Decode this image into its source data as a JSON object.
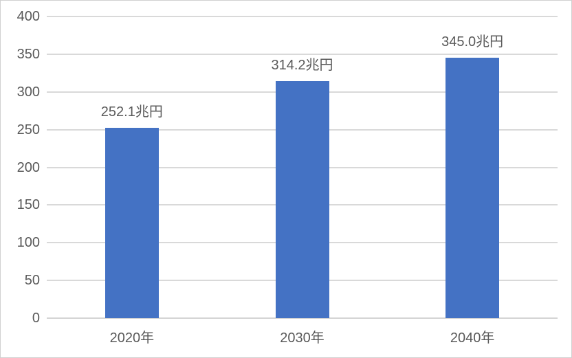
{
  "chart_data": {
    "type": "bar",
    "title": "",
    "categories": [
      "2020年",
      "2030年",
      "2040年"
    ],
    "values": [
      252.1,
      314.2,
      345.0
    ],
    "data_labels": [
      "252.1兆円",
      "314.2兆円",
      "345.0兆円"
    ],
    "unit": "兆円",
    "xlabel": "",
    "ylabel": "",
    "ylim": [
      0,
      400
    ],
    "yticks": [
      0,
      50,
      100,
      150,
      200,
      250,
      300,
      350,
      400
    ],
    "grid": true,
    "legend": "none",
    "colors": {
      "bar": "#4472C4",
      "gridline": "#D9D9D9",
      "axis_line": "#D4D4D4",
      "text": "#595959",
      "background": "#FFFFFF",
      "frame_border": "#D0D0D0"
    }
  }
}
